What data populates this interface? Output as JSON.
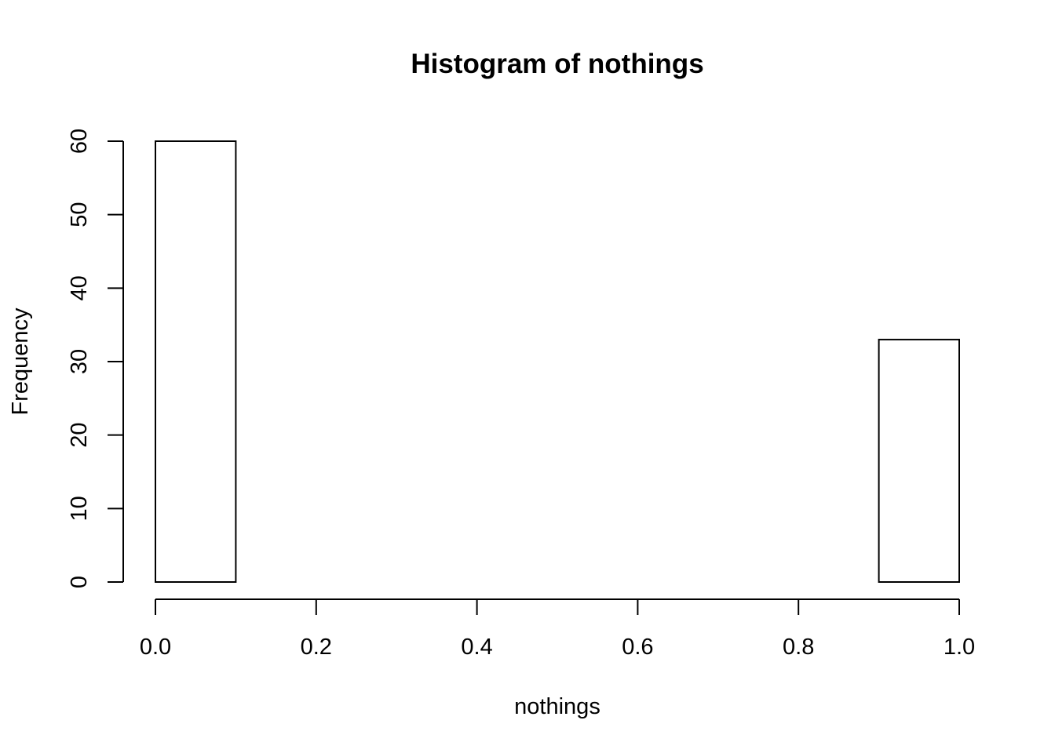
{
  "chart_data": {
    "type": "bar",
    "title": "Histogram of nothings",
    "xlabel": "nothings",
    "ylabel": "Frequency",
    "bins": [
      {
        "start": 0.0,
        "end": 0.1,
        "count": 60
      },
      {
        "start": 0.1,
        "end": 0.2,
        "count": 0
      },
      {
        "start": 0.2,
        "end": 0.3,
        "count": 0
      },
      {
        "start": 0.3,
        "end": 0.4,
        "count": 0
      },
      {
        "start": 0.4,
        "end": 0.5,
        "count": 0
      },
      {
        "start": 0.5,
        "end": 0.6,
        "count": 0
      },
      {
        "start": 0.6,
        "end": 0.7,
        "count": 0
      },
      {
        "start": 0.7,
        "end": 0.8,
        "count": 0
      },
      {
        "start": 0.8,
        "end": 0.9,
        "count": 0
      },
      {
        "start": 0.9,
        "end": 1.0,
        "count": 33
      }
    ],
    "xlim": [
      0,
      1
    ],
    "ylim": [
      0,
      60
    ],
    "xticks": [
      {
        "value": 0.0,
        "label": "0.0"
      },
      {
        "value": 0.2,
        "label": "0.2"
      },
      {
        "value": 0.4,
        "label": "0.4"
      },
      {
        "value": 0.6,
        "label": "0.6"
      },
      {
        "value": 0.8,
        "label": "0.8"
      },
      {
        "value": 1.0,
        "label": "1.0"
      }
    ],
    "yticks": [
      {
        "value": 0,
        "label": "0"
      },
      {
        "value": 10,
        "label": "10"
      },
      {
        "value": 20,
        "label": "20"
      },
      {
        "value": 30,
        "label": "30"
      },
      {
        "value": 40,
        "label": "40"
      },
      {
        "value": 50,
        "label": "50"
      },
      {
        "value": 60,
        "label": "60"
      }
    ],
    "grid": false,
    "colors": {
      "fill": "#ffffff",
      "stroke": "#000000"
    }
  }
}
